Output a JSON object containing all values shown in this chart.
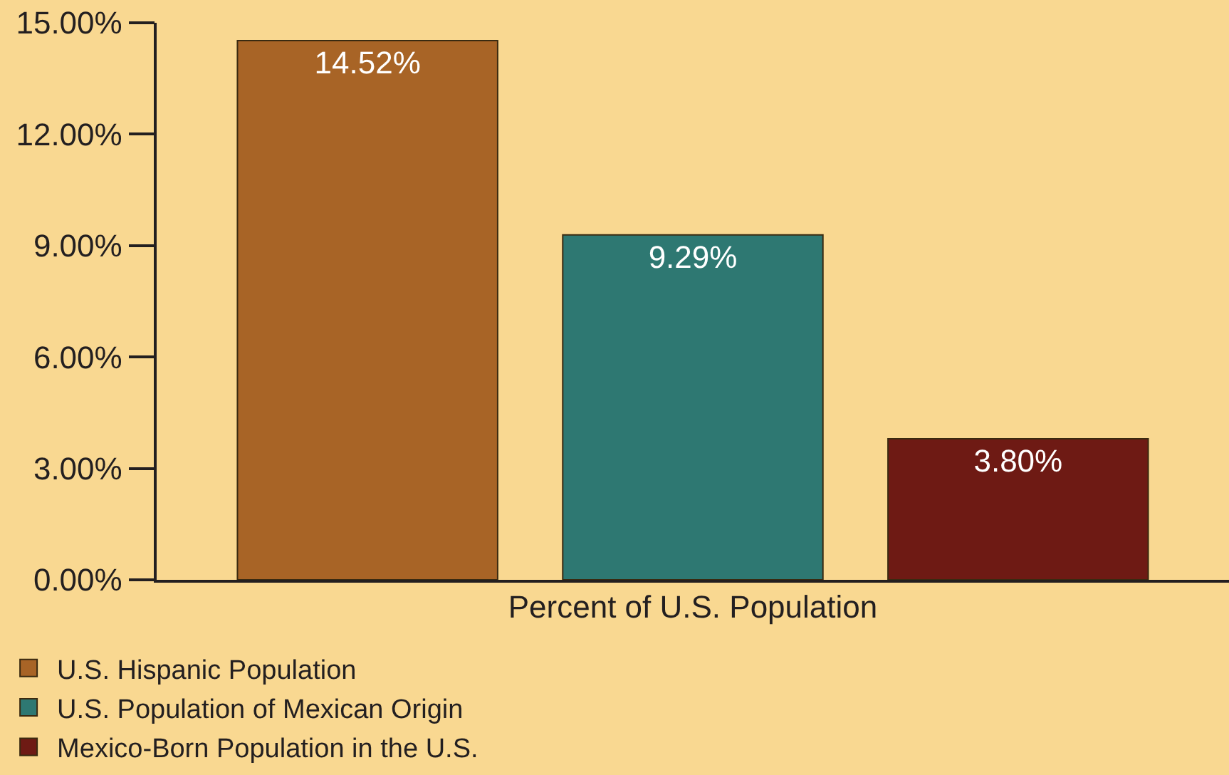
{
  "chart_data": {
    "type": "bar",
    "xlabel": "Percent of U.S. Population",
    "categories": [
      null
    ],
    "series": [
      {
        "name": "U.S. Hispanic Population",
        "color": "#a86426",
        "values": [
          14.52
        ],
        "value_labels": [
          "14.52%"
        ]
      },
      {
        "name": "U.S. Population of Mexican Origin",
        "color": "#2e7872",
        "values": [
          9.29
        ],
        "value_labels": [
          "9.29%"
        ]
      },
      {
        "name": "Mexico-Born Population in the U.S.",
        "color": "#6e1a14",
        "values": [
          3.8
        ],
        "value_labels": [
          "3.80%"
        ]
      }
    ],
    "ylim": [
      0,
      15
    ],
    "yticks": [
      {
        "value": 0,
        "label": "0.00%"
      },
      {
        "value": 3,
        "label": "3.00%"
      },
      {
        "value": 6,
        "label": "6.00%"
      },
      {
        "value": 9,
        "label": "9.00%"
      },
      {
        "value": 12,
        "label": "12.00%"
      },
      {
        "value": 15,
        "label": "15.00%"
      }
    ],
    "legend": "bottom left"
  }
}
